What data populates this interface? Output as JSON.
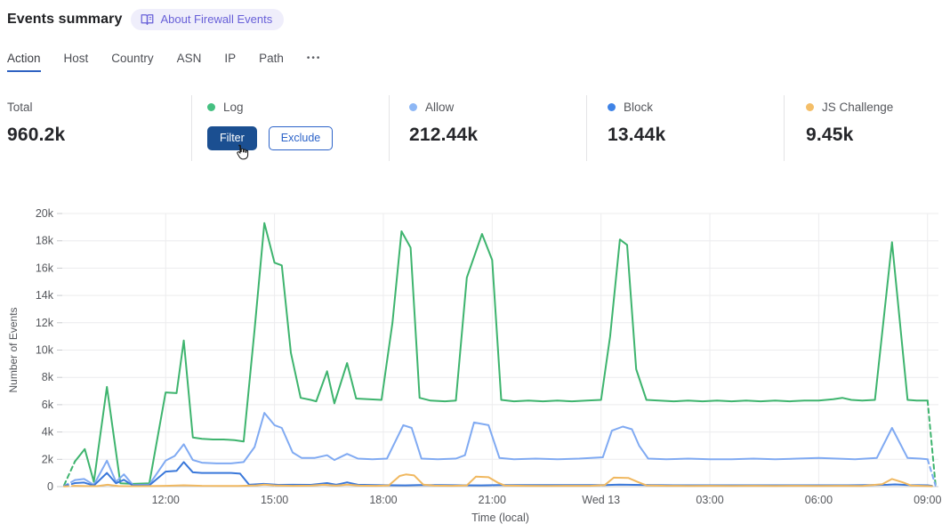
{
  "header": {
    "title": "Events summary",
    "about_badge": "About Firewall Events"
  },
  "tabs": {
    "items": [
      {
        "label": "Action",
        "active": true
      },
      {
        "label": "Host",
        "active": false
      },
      {
        "label": "Country",
        "active": false
      },
      {
        "label": "ASN",
        "active": false
      },
      {
        "label": "IP",
        "active": false
      },
      {
        "label": "Path",
        "active": false
      }
    ],
    "more": "•••"
  },
  "stats": {
    "total": {
      "label": "Total",
      "value": "960.2k"
    },
    "log": {
      "label": "Log",
      "dot_color": "#45c081",
      "filter_label": "Filter",
      "exclude_label": "Exclude"
    },
    "allow": {
      "label": "Allow",
      "value": "212.44k",
      "dot_color": "#8db7f5"
    },
    "block": {
      "label": "Block",
      "value": "13.44k",
      "dot_color": "#3f83e6"
    },
    "js_challenge": {
      "label": "JS Challenge",
      "value": "9.45k",
      "dot_color": "#f4be68"
    }
  },
  "colors": {
    "accent_blue": "#2c63c9",
    "primary_button_bg": "#1b4f91",
    "grid": "#ececee",
    "axis": "#c9cbce",
    "tick_text": "#55575c"
  },
  "chart_data": {
    "type": "line",
    "title": "",
    "xlabel": "Time (local)",
    "ylabel": "Number of Events",
    "x_unit": "hours; 24 = Wed 13 00:00, 9.2 ≈ Tue 09:15, 33 = Wed 09:00",
    "xlim": [
      9.15,
      33.3
    ],
    "ylim": [
      0,
      20000
    ],
    "grid": true,
    "legend_position": "stats-row-above-chart",
    "yticks": [
      {
        "v": 0,
        "label": "0"
      },
      {
        "v": 2000,
        "label": "2k"
      },
      {
        "v": 4000,
        "label": "4k"
      },
      {
        "v": 6000,
        "label": "6k"
      },
      {
        "v": 8000,
        "label": "8k"
      },
      {
        "v": 10000,
        "label": "10k"
      },
      {
        "v": 12000,
        "label": "12k"
      },
      {
        "v": 14000,
        "label": "14k"
      },
      {
        "v": 16000,
        "label": "16k"
      },
      {
        "v": 18000,
        "label": "18k"
      },
      {
        "v": 20000,
        "label": "20k"
      }
    ],
    "xticks": [
      {
        "t": 12,
        "label": "12:00"
      },
      {
        "t": 15,
        "label": "15:00"
      },
      {
        "t": 18,
        "label": "18:00"
      },
      {
        "t": 21,
        "label": "21:00"
      },
      {
        "t": 24,
        "label": "Wed 13"
      },
      {
        "t": 27,
        "label": "03:00"
      },
      {
        "t": 30,
        "label": "06:00"
      },
      {
        "t": 33,
        "label": "09:00"
      }
    ],
    "series": [
      {
        "name": "Log",
        "color": "#3eb46e",
        "dashed_ends": true,
        "points": [
          [
            9.2,
            100
          ],
          [
            9.5,
            1850
          ],
          [
            9.77,
            2750
          ],
          [
            10.02,
            350
          ],
          [
            10.38,
            7300
          ],
          [
            10.75,
            250
          ],
          [
            11.1,
            200
          ],
          [
            11.55,
            250
          ],
          [
            12.0,
            6900
          ],
          [
            12.3,
            6850
          ],
          [
            12.5,
            10700
          ],
          [
            12.75,
            3600
          ],
          [
            13.0,
            3500
          ],
          [
            13.3,
            3450
          ],
          [
            13.6,
            3450
          ],
          [
            13.9,
            3400
          ],
          [
            14.15,
            3300
          ],
          [
            14.45,
            11500
          ],
          [
            14.72,
            19300
          ],
          [
            15.0,
            16400
          ],
          [
            15.2,
            16200
          ],
          [
            15.45,
            9800
          ],
          [
            15.72,
            6500
          ],
          [
            16.0,
            6350
          ],
          [
            16.15,
            6250
          ],
          [
            16.45,
            8450
          ],
          [
            16.65,
            6100
          ],
          [
            17.0,
            9050
          ],
          [
            17.25,
            6450
          ],
          [
            17.6,
            6400
          ],
          [
            17.95,
            6350
          ],
          [
            18.25,
            12000
          ],
          [
            18.5,
            18700
          ],
          [
            18.75,
            17500
          ],
          [
            19.0,
            6500
          ],
          [
            19.3,
            6300
          ],
          [
            19.7,
            6250
          ],
          [
            20.0,
            6300
          ],
          [
            20.3,
            15300
          ],
          [
            20.72,
            18500
          ],
          [
            21.0,
            16600
          ],
          [
            21.25,
            6350
          ],
          [
            21.6,
            6250
          ],
          [
            22.0,
            6300
          ],
          [
            22.4,
            6250
          ],
          [
            22.8,
            6300
          ],
          [
            23.2,
            6250
          ],
          [
            23.6,
            6300
          ],
          [
            24.0,
            6350
          ],
          [
            24.25,
            11000
          ],
          [
            24.52,
            18100
          ],
          [
            24.72,
            17700
          ],
          [
            24.97,
            8600
          ],
          [
            25.25,
            6350
          ],
          [
            25.6,
            6300
          ],
          [
            26.0,
            6250
          ],
          [
            26.4,
            6300
          ],
          [
            26.8,
            6250
          ],
          [
            27.2,
            6300
          ],
          [
            27.6,
            6250
          ],
          [
            28.0,
            6300
          ],
          [
            28.4,
            6250
          ],
          [
            28.8,
            6300
          ],
          [
            29.2,
            6250
          ],
          [
            29.6,
            6300
          ],
          [
            30.0,
            6300
          ],
          [
            30.4,
            6400
          ],
          [
            30.65,
            6500
          ],
          [
            30.9,
            6350
          ],
          [
            31.2,
            6300
          ],
          [
            31.55,
            6350
          ],
          [
            32.02,
            17900
          ],
          [
            32.45,
            6350
          ],
          [
            32.7,
            6300
          ],
          [
            33.0,
            6300
          ],
          [
            33.22,
            150
          ]
        ]
      },
      {
        "name": "Allow",
        "color": "#80aaf2",
        "dashed_ends": true,
        "points": [
          [
            9.2,
            50
          ],
          [
            9.5,
            480
          ],
          [
            9.75,
            560
          ],
          [
            10.02,
            130
          ],
          [
            10.38,
            1900
          ],
          [
            10.63,
            350
          ],
          [
            10.85,
            900
          ],
          [
            11.1,
            120
          ],
          [
            11.55,
            150
          ],
          [
            12.0,
            1900
          ],
          [
            12.25,
            2250
          ],
          [
            12.5,
            3100
          ],
          [
            12.75,
            1950
          ],
          [
            13.0,
            1750
          ],
          [
            13.4,
            1700
          ],
          [
            13.8,
            1700
          ],
          [
            14.15,
            1800
          ],
          [
            14.45,
            2900
          ],
          [
            14.72,
            5400
          ],
          [
            15.0,
            4500
          ],
          [
            15.2,
            4300
          ],
          [
            15.5,
            2500
          ],
          [
            15.75,
            2100
          ],
          [
            16.1,
            2100
          ],
          [
            16.45,
            2300
          ],
          [
            16.65,
            1950
          ],
          [
            17.0,
            2400
          ],
          [
            17.3,
            2050
          ],
          [
            17.7,
            2000
          ],
          [
            18.1,
            2050
          ],
          [
            18.55,
            4500
          ],
          [
            18.78,
            4300
          ],
          [
            19.05,
            2050
          ],
          [
            19.5,
            2000
          ],
          [
            20.0,
            2050
          ],
          [
            20.25,
            2300
          ],
          [
            20.5,
            4700
          ],
          [
            20.9,
            4500
          ],
          [
            21.2,
            2100
          ],
          [
            21.6,
            2000
          ],
          [
            22.2,
            2050
          ],
          [
            22.8,
            2000
          ],
          [
            23.4,
            2050
          ],
          [
            24.05,
            2150
          ],
          [
            24.3,
            4100
          ],
          [
            24.6,
            4400
          ],
          [
            24.85,
            4200
          ],
          [
            25.05,
            3000
          ],
          [
            25.3,
            2050
          ],
          [
            25.8,
            2000
          ],
          [
            26.4,
            2050
          ],
          [
            27.0,
            2000
          ],
          [
            27.6,
            2000
          ],
          [
            28.2,
            2050
          ],
          [
            28.8,
            2000
          ],
          [
            29.4,
            2050
          ],
          [
            30.0,
            2100
          ],
          [
            30.5,
            2050
          ],
          [
            31.0,
            2000
          ],
          [
            31.6,
            2100
          ],
          [
            32.02,
            4300
          ],
          [
            32.45,
            2100
          ],
          [
            32.8,
            2050
          ],
          [
            33.0,
            2000
          ],
          [
            33.22,
            80
          ]
        ]
      },
      {
        "name": "Block",
        "color": "#3a78da",
        "dashed_ends": true,
        "points": [
          [
            9.2,
            30
          ],
          [
            9.5,
            260
          ],
          [
            9.75,
            300
          ],
          [
            10.02,
            80
          ],
          [
            10.38,
            1000
          ],
          [
            10.63,
            250
          ],
          [
            10.85,
            500
          ],
          [
            11.1,
            80
          ],
          [
            11.55,
            100
          ],
          [
            12.0,
            1100
          ],
          [
            12.3,
            1150
          ],
          [
            12.5,
            1800
          ],
          [
            12.75,
            1050
          ],
          [
            13.0,
            1000
          ],
          [
            13.4,
            1000
          ],
          [
            13.8,
            1000
          ],
          [
            14.05,
            950
          ],
          [
            14.3,
            140
          ],
          [
            14.7,
            200
          ],
          [
            15.1,
            130
          ],
          [
            15.5,
            140
          ],
          [
            16.0,
            130
          ],
          [
            16.45,
            260
          ],
          [
            16.7,
            140
          ],
          [
            17.0,
            310
          ],
          [
            17.3,
            140
          ],
          [
            17.8,
            120
          ],
          [
            18.3,
            100
          ],
          [
            18.6,
            90
          ],
          [
            19.0,
            110
          ],
          [
            19.6,
            110
          ],
          [
            20.2,
            100
          ],
          [
            20.7,
            90
          ],
          [
            21.2,
            110
          ],
          [
            21.8,
            110
          ],
          [
            22.4,
            110
          ],
          [
            23.0,
            110
          ],
          [
            23.6,
            110
          ],
          [
            24.1,
            120
          ],
          [
            24.5,
            150
          ],
          [
            24.9,
            130
          ],
          [
            25.4,
            110
          ],
          [
            26.0,
            100
          ],
          [
            26.6,
            100
          ],
          [
            27.2,
            100
          ],
          [
            27.8,
            100
          ],
          [
            28.4,
            100
          ],
          [
            29.0,
            100
          ],
          [
            29.6,
            100
          ],
          [
            30.2,
            100
          ],
          [
            30.8,
            100
          ],
          [
            31.4,
            110
          ],
          [
            31.9,
            140
          ],
          [
            32.1,
            160
          ],
          [
            32.5,
            110
          ],
          [
            33.0,
            100
          ],
          [
            33.22,
            30
          ]
        ]
      },
      {
        "name": "JS Challenge",
        "color": "#f0b860",
        "dashed_ends": true,
        "points": [
          [
            9.2,
            20
          ],
          [
            9.5,
            60
          ],
          [
            9.8,
            40
          ],
          [
            10.1,
            30
          ],
          [
            10.4,
            140
          ],
          [
            10.7,
            40
          ],
          [
            11.1,
            30
          ],
          [
            11.6,
            40
          ],
          [
            12.0,
            60
          ],
          [
            12.5,
            100
          ],
          [
            13.0,
            60
          ],
          [
            13.5,
            50
          ],
          [
            14.0,
            50
          ],
          [
            14.5,
            90
          ],
          [
            14.72,
            150
          ],
          [
            15.0,
            90
          ],
          [
            15.5,
            60
          ],
          [
            16.0,
            70
          ],
          [
            16.35,
            140
          ],
          [
            16.7,
            70
          ],
          [
            17.0,
            150
          ],
          [
            17.35,
            70
          ],
          [
            17.8,
            60
          ],
          [
            18.15,
            90
          ],
          [
            18.45,
            780
          ],
          [
            18.62,
            890
          ],
          [
            18.85,
            820
          ],
          [
            19.1,
            150
          ],
          [
            19.4,
            70
          ],
          [
            19.9,
            60
          ],
          [
            20.3,
            90
          ],
          [
            20.55,
            730
          ],
          [
            20.9,
            690
          ],
          [
            21.15,
            300
          ],
          [
            21.35,
            80
          ],
          [
            21.9,
            60
          ],
          [
            22.5,
            50
          ],
          [
            23.1,
            60
          ],
          [
            23.7,
            60
          ],
          [
            24.1,
            110
          ],
          [
            24.35,
            660
          ],
          [
            24.75,
            640
          ],
          [
            25.0,
            350
          ],
          [
            25.25,
            90
          ],
          [
            25.8,
            60
          ],
          [
            26.4,
            50
          ],
          [
            27.0,
            60
          ],
          [
            27.6,
            50
          ],
          [
            28.2,
            60
          ],
          [
            28.8,
            50
          ],
          [
            29.4,
            60
          ],
          [
            30.0,
            50
          ],
          [
            30.6,
            60
          ],
          [
            31.2,
            50
          ],
          [
            31.75,
            180
          ],
          [
            32.02,
            560
          ],
          [
            32.3,
            330
          ],
          [
            32.55,
            80
          ],
          [
            33.0,
            40
          ],
          [
            33.22,
            15
          ]
        ]
      }
    ]
  }
}
